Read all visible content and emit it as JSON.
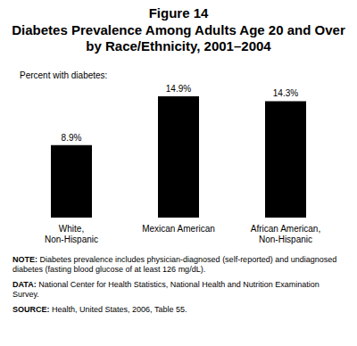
{
  "chart_data": {
    "type": "bar",
    "figure": "Figure 14",
    "title": "Diabetes Prevalence Among Adults Age 20 and Over by Race/Ethnicity, 2001–2004",
    "subtitle": "Percent with diabetes:",
    "categories": [
      "White, Non-Hispanic",
      "Mexican American",
      "African American, Non-Hispanic"
    ],
    "values": [
      8.9,
      14.9,
      14.3
    ],
    "value_labels": [
      "8.9%",
      "14.9%",
      "14.3%"
    ],
    "data_labels": true,
    "tick_labels": "x",
    "grid": false,
    "color": "#000000",
    "annotations": [
      "NOTE: Diabetes prevalence includes physician-diagnosed (self-reported) and undiagnosed diabetes (fasting blood glucose of at least 126 mg/dL).",
      "DATA: National Center for Health Statistics, National Health and Nutrition Examination Survey.",
      "SOURCE: Health, United States, 2006, Table 55."
    ]
  }
}
